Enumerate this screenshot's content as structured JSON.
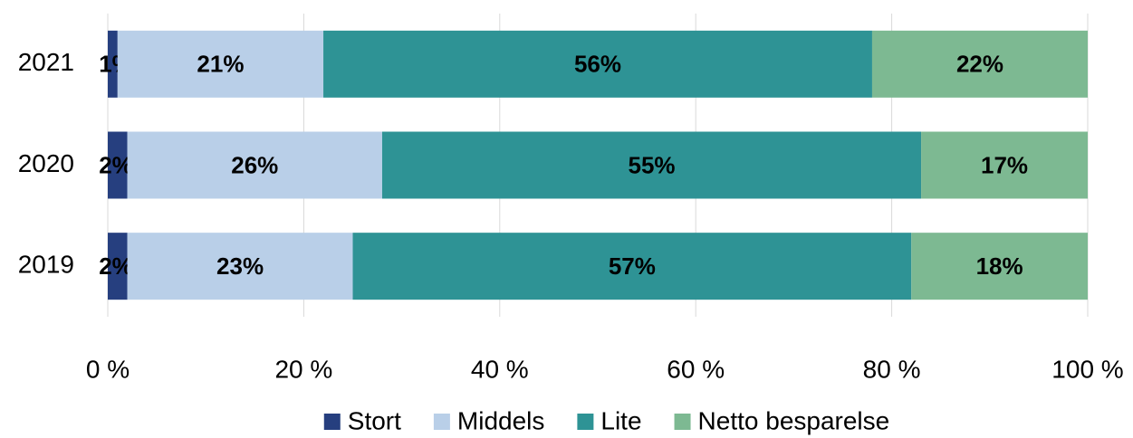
{
  "chart_data": {
    "type": "stacked_barh",
    "categories": [
      "2021",
      "2020",
      "2019"
    ],
    "series": [
      {
        "name": "Stort",
        "color": "#263f7f",
        "values": [
          1,
          2,
          2
        ],
        "value_labels": [
          "1%",
          "2%",
          "2%"
        ]
      },
      {
        "name": "Middels",
        "color": "#b9cfe8",
        "values": [
          21,
          26,
          23
        ],
        "value_labels": [
          "21%",
          "26%",
          "23%"
        ]
      },
      {
        "name": "Lite",
        "color": "#2e9395",
        "values": [
          56,
          55,
          57
        ],
        "value_labels": [
          "56%",
          "55%",
          "57%"
        ]
      },
      {
        "name": "Netto besparelse",
        "color": "#7db992",
        "values": [
          22,
          17,
          18
        ],
        "value_labels": [
          "22%",
          "17%",
          "18%"
        ]
      }
    ],
    "xlim": [
      0,
      100
    ],
    "xticks": [
      {
        "value": 0,
        "label": "0 %"
      },
      {
        "value": 20,
        "label": "20 %"
      },
      {
        "value": 40,
        "label": "40 %"
      },
      {
        "value": 60,
        "label": "60 %"
      },
      {
        "value": 80,
        "label": "80 %"
      },
      {
        "value": 100,
        "label": "100 %"
      }
    ],
    "grid": true,
    "legend": "bottom"
  }
}
